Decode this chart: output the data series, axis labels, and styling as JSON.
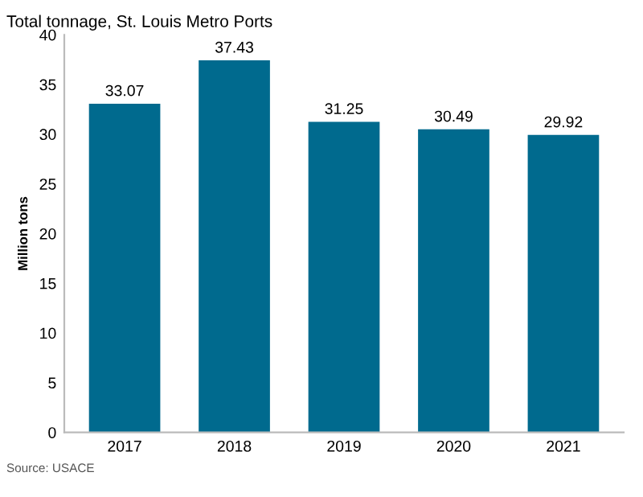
{
  "chart_data": {
    "type": "bar",
    "title": "Total tonnage, St. Louis Metro Ports",
    "ylabel": "Million tons",
    "categories": [
      "2017",
      "2018",
      "2019",
      "2020",
      "2021"
    ],
    "values": [
      33.07,
      37.43,
      31.25,
      30.49,
      29.92
    ],
    "color": "#006a8e",
    "data_labels": true,
    "ylim": [
      0,
      40
    ],
    "yticks": [
      0,
      5,
      10,
      15,
      20,
      25,
      30,
      35,
      40
    ],
    "grid": false,
    "annotations": [
      "Source: USACE"
    ]
  }
}
